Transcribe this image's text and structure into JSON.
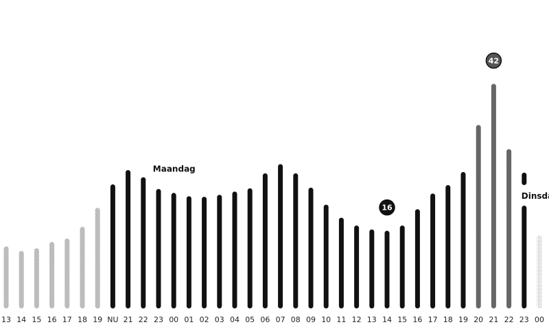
{
  "chart_data": {
    "type": "bar",
    "title": "",
    "xlabel": "",
    "ylabel": "",
    "ylim": [
      0,
      42
    ],
    "grid": false,
    "categories": [
      "13",
      "14",
      "15",
      "16",
      "17",
      "18",
      "19",
      "NU",
      "21",
      "22",
      "23",
      "00",
      "01",
      "02",
      "03",
      "04",
      "05",
      "06",
      "07",
      "08",
      "09",
      "10",
      "11",
      "12",
      "13",
      "14",
      "15",
      "16",
      "17",
      "18",
      "19",
      "20",
      "21",
      "22",
      "23",
      "00"
    ],
    "values": [
      9.5,
      8.8,
      9.2,
      10.2,
      10.7,
      12.5,
      15.4,
      19.0,
      21.2,
      20.1,
      18.3,
      17.7,
      17.2,
      17.1,
      17.4,
      17.9,
      18.4,
      20.7,
      22.1,
      20.7,
      18.5,
      15.9,
      13.9,
      12.7,
      12.1,
      11.9,
      12.7,
      15.2,
      17.6,
      18.9,
      20.9,
      28.1,
      34.4,
      24.4,
      20.8,
      11.2
    ],
    "highlights": [
      {
        "index": 25,
        "label": "16"
      },
      {
        "index": 32,
        "label": "42"
      }
    ],
    "annotations": [
      {
        "index": 9,
        "text": "Maandag"
      },
      {
        "index": 35,
        "text": "Dinsdag"
      }
    ],
    "styles": {
      "past": "#8a8a8a",
      "now": "#111111",
      "peak": "#555555",
      "future": "#aaaaaa"
    },
    "bar_styles": [
      "past",
      "past",
      "past",
      "past",
      "past",
      "past",
      "past",
      "now",
      "now",
      "now",
      "now",
      "now",
      "now",
      "now",
      "now",
      "now",
      "now",
      "now",
      "now",
      "now",
      "now",
      "now",
      "now",
      "now",
      "now",
      "now",
      "now",
      "now",
      "now",
      "now",
      "now",
      "peak",
      "peak",
      "peak",
      "now",
      "future"
    ]
  }
}
